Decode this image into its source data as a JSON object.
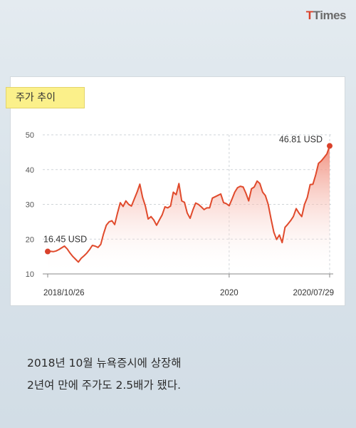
{
  "brand": {
    "logo_main": "T",
    "logo_rest": "Times"
  },
  "tag_label": "주가 추이",
  "caption": {
    "line1": "2018년 10월 뉴욕증시에 상장해",
    "line2": "2년여 만에 주가도 2.5배가 됐다."
  },
  "colors": {
    "line": "#e04a2c",
    "fill_top": "#f08a78",
    "accent": "#d9412b",
    "tag_bg": "#fbf08a"
  },
  "chart_data": {
    "type": "area",
    "title": "",
    "xlabel": "",
    "ylabel": "",
    "ylim": [
      10,
      50
    ],
    "yticks": [
      10,
      20,
      30,
      40,
      50
    ],
    "x_tick_labels": [
      {
        "x": 0,
        "label": "2018/10/26"
      },
      {
        "x": 65,
        "label": "2020"
      },
      {
        "x": 101,
        "label": "2020/07/29"
      }
    ],
    "annotations": [
      {
        "x": 0,
        "y": 16.45,
        "label": "16.45 USD"
      },
      {
        "x": 101,
        "y": 46.81,
        "label": "46.81 USD"
      }
    ],
    "grid": "horizontal-dashed",
    "series": [
      {
        "name": "",
        "values": [
          16.45,
          16.5,
          16.4,
          16.6,
          17,
          17.5,
          18,
          17.2,
          16,
          15,
          14.2,
          13.4,
          14.5,
          15.2,
          16,
          17,
          18.2,
          18,
          17.6,
          18.5,
          21.5,
          24,
          25,
          25.3,
          24.2,
          27.5,
          30.5,
          29.4,
          31,
          30,
          29.5,
          31.5,
          33.5,
          35.8,
          32,
          29.5,
          25.8,
          26.5,
          25.5,
          24,
          25.5,
          27,
          29.3,
          29,
          29.5,
          33.5,
          32.8,
          36,
          31,
          30.6,
          27.5,
          26,
          28.4,
          30.4,
          30,
          29.3,
          28.5,
          29,
          29,
          31.8,
          32.2,
          32.6,
          33,
          30.5,
          30.2,
          29.6,
          31.5,
          33.5,
          34.8,
          35.2,
          35,
          33.2,
          31,
          34.5,
          35,
          36.7,
          36,
          33.5,
          32.5,
          30,
          25.8,
          22,
          19.9,
          21.2,
          19,
          23.4,
          24.3,
          25.3,
          26.5,
          28.8,
          27.5,
          26.5,
          30,
          32,
          35.7,
          35.8,
          38.5,
          41.8,
          42.5,
          43.5,
          44.5,
          46.81
        ]
      }
    ]
  }
}
